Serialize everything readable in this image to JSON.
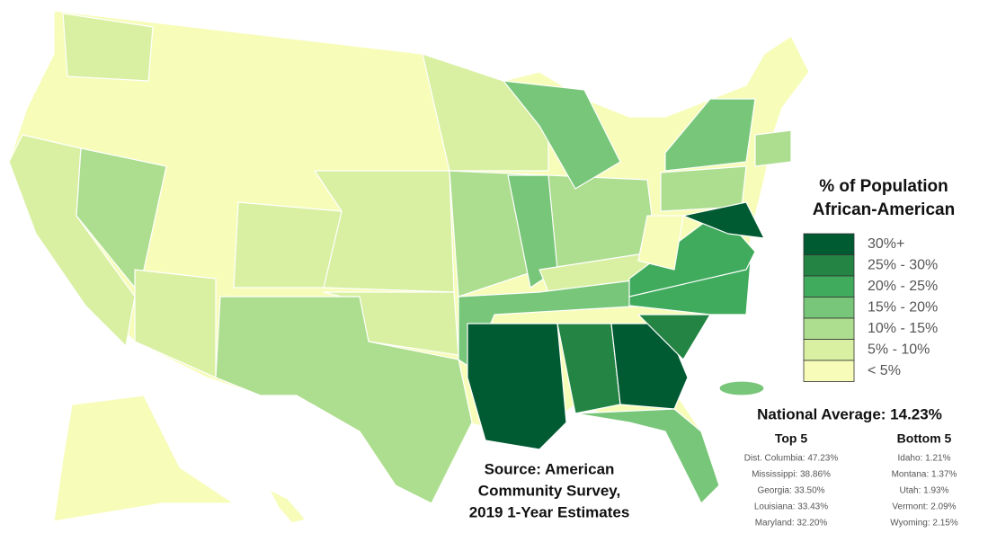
{
  "legend": {
    "title": [
      "% of Population",
      "African-American"
    ],
    "items": [
      {
        "label": "30%+",
        "color": "#005a32"
      },
      {
        "label": "25% - 30%",
        "color": "#238443"
      },
      {
        "label": "20% - 25%",
        "color": "#41ab5d"
      },
      {
        "label": "15% - 20%",
        "color": "#78c679"
      },
      {
        "label": "10% - 15%",
        "color": "#addd8e"
      },
      {
        "label": "5% - 10%",
        "color": "#d9f0a3"
      },
      {
        "label": "< 5%",
        "color": "#f7fcb9"
      }
    ]
  },
  "national_average": "National Average: 14.23%",
  "top5": {
    "title": "Top 5",
    "items": [
      "Dist. Columbia: 47.23%",
      "Mississippi: 38.86%",
      "Georgia: 33.50%",
      "Louisiana: 33.43%",
      "Maryland: 32.20%"
    ]
  },
  "bottom5": {
    "title": "Bottom 5",
    "items": [
      "Idaho: 1.21%",
      "Montana: 1.37%",
      "Utah: 1.93%",
      "Vermont: 2.09%",
      "Wyoming: 2.15%"
    ]
  },
  "source": [
    "Source: American",
    "Community Survey,",
    "2019 1-Year Estimates"
  ]
}
